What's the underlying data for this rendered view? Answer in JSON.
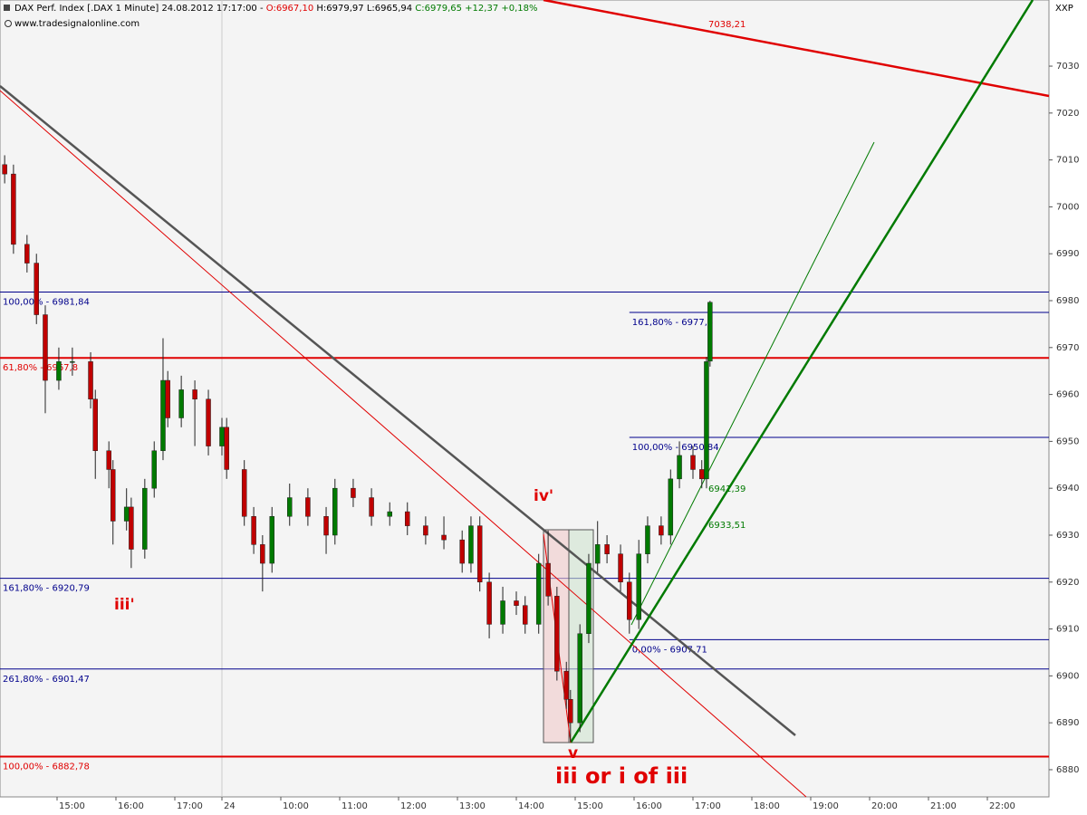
{
  "header": {
    "title": "DAX Perf. Index [.DAX 1 Minute] 24.08.2012 17:17:00 -",
    "open": "O:6967,10",
    "high": "H:6979,97",
    "low": "L:6965,94",
    "close": "C:6979,65 +12,37 +0,18%",
    "source": "www.tradesignalonline.com",
    "symbol": "XXP"
  },
  "chart_data": {
    "type": "candlestick",
    "x": [
      0.11,
      0.26,
      0.49,
      0.65,
      0.8,
      1.03,
      1.26,
      1.57,
      1.65,
      1.88,
      1.95,
      2.18,
      2.26,
      2.49,
      2.65,
      2.8,
      2.88,
      3.11,
      3.34,
      3.57,
      3.8,
      3.88,
      4.18,
      4.34,
      4.49,
      4.65,
      4.95,
      5.26,
      5.57,
      5.72,
      6.03,
      6.34,
      6.65,
      6.95,
      7.26,
      7.57,
      7.88,
      8.03,
      8.18,
      8.34,
      8.57,
      8.8,
      8.95,
      9.18,
      9.34,
      9.49,
      9.65,
      9.72,
      9.88,
      10.03,
      10.18,
      10.34,
      10.57,
      10.72,
      10.88,
      11.03,
      11.26,
      11.42,
      11.57,
      11.8,
      11.95,
      12.03,
      12.09
    ],
    "open": [
      7009,
      7007,
      6992,
      6988,
      6977,
      6963,
      6967,
      6967,
      6959,
      6948,
      6944,
      6933,
      6936,
      6927,
      6940,
      6948,
      6963,
      6955,
      6961,
      6959,
      6949,
      6953,
      6944,
      6934,
      6928,
      6924,
      6934,
      6938,
      6934,
      6930,
      6940,
      6938,
      6934,
      6935,
      6932,
      6930,
      6929,
      6924,
      6932,
      6920,
      6911,
      6916,
      6915,
      6911,
      6924,
      6917,
      6901,
      6895,
      6890,
      6909,
      6924,
      6928,
      6926,
      6920,
      6912,
      6926,
      6932,
      6930,
      6942,
      6947,
      6944,
      6942,
      6967.1
    ],
    "high": [
      7011,
      7009,
      6994,
      6990,
      6979,
      6970,
      6970,
      6969,
      6961,
      6950,
      6946,
      6940,
      6938,
      6942,
      6950,
      6972,
      6965,
      6964,
      6963,
      6961,
      6955,
      6955,
      6946,
      6936,
      6930,
      6936,
      6941,
      6940,
      6936,
      6942,
      6942,
      6940,
      6937,
      6937,
      6934,
      6934,
      6931,
      6934,
      6934,
      6922,
      6919,
      6918,
      6917,
      6926,
      6931,
      6919,
      6903,
      6897,
      6911,
      6926,
      6933,
      6930,
      6928,
      6922,
      6929,
      6934,
      6934,
      6944,
      6950,
      6949,
      6946,
      6968,
      6979.97
    ],
    "low": [
      7005,
      6990,
      6986,
      6975,
      6956,
      6961,
      6964,
      6957,
      6942,
      6940,
      6928,
      6931,
      6923,
      6925,
      6938,
      6946,
      6953,
      6953,
      6949,
      6947,
      6947,
      6942,
      6932,
      6926,
      6918,
      6922,
      6932,
      6932,
      6926,
      6928,
      6936,
      6932,
      6932,
      6930,
      6928,
      6927,
      6922,
      6922,
      6918,
      6908,
      6909,
      6913,
      6909,
      6909,
      6915,
      6899,
      6893,
      6886,
      6888,
      6907,
      6922,
      6924,
      6918,
      6909,
      6910,
      6924,
      6928,
      6928,
      6940,
      6942,
      6940,
      6940,
      6965.94
    ],
    "close": [
      7007,
      6992,
      6988,
      6977,
      6963,
      6967,
      6967,
      6959,
      6948,
      6944,
      6933,
      6936,
      6927,
      6940,
      6948,
      6963,
      6955,
      6961,
      6959,
      6949,
      6953,
      6944,
      6934,
      6928,
      6924,
      6934,
      6938,
      6934,
      6930,
      6940,
      6938,
      6934,
      6935,
      6932,
      6930,
      6929,
      6924,
      6932,
      6920,
      6911,
      6916,
      6915,
      6911,
      6924,
      6917,
      6901,
      6895,
      6890,
      6909,
      6924,
      6928,
      6926,
      6920,
      6912,
      6926,
      6932,
      6930,
      6942,
      6947,
      6944,
      6942,
      6967,
      6979.65
    ],
    "up_color": "#007a00",
    "down_color": "#c00000",
    "xlim": [
      0.031,
      17.846
    ],
    "xticks": [
      {
        "value": 1,
        "label": "15:00"
      },
      {
        "value": 2,
        "label": "16:00"
      },
      {
        "value": 3,
        "label": "17:00"
      },
      {
        "value": 3.8,
        "label": "24"
      },
      {
        "value": 4.8,
        "label": "10:00"
      },
      {
        "value": 5.8,
        "label": "11:00"
      },
      {
        "value": 6.8,
        "label": "12:00"
      },
      {
        "value": 7.8,
        "label": "13:00"
      },
      {
        "value": 8.8,
        "label": "14:00"
      },
      {
        "value": 9.8,
        "label": "15:00"
      },
      {
        "value": 10.8,
        "label": "16:00"
      },
      {
        "value": 11.8,
        "label": "17:00"
      },
      {
        "value": 12.8,
        "label": "18:00"
      },
      {
        "value": 13.8,
        "label": "19:00"
      },
      {
        "value": 14.8,
        "label": "20:00"
      },
      {
        "value": 15.8,
        "label": "21:00"
      },
      {
        "value": 16.8,
        "label": "22:00"
      }
    ],
    "ylim": [
      6874.2,
      7044.1
    ],
    "yticks": [
      6880,
      6890,
      6900,
      6910,
      6920,
      6930,
      6940,
      6950,
      6960,
      6970,
      6980,
      6990,
      7000,
      7010,
      7020,
      7030
    ],
    "grid": false,
    "levels": [
      {
        "value": 6981.84,
        "label": "100,00% - 6981,84",
        "color": "#00008b",
        "from": 0.031
      },
      {
        "value": 6967.8,
        "label": "61,80% - 6967,8",
        "color": "#e00000",
        "from": 0.031
      },
      {
        "value": 6920.79,
        "label": "161,80% - 6920,79",
        "color": "#00008b",
        "from": 0.031
      },
      {
        "value": 6901.47,
        "label": "261,80% - 6901,47",
        "color": "#00008b",
        "from": 0.031
      },
      {
        "value": 6882.78,
        "label": "100,00% - 6882,78",
        "color": "#e00000",
        "from": 0.031
      },
      {
        "value": 6977.5,
        "label": "161,80% - 6977,5",
        "color": "#00008b",
        "from": 10.72
      },
      {
        "value": 6950.84,
        "label": "100,00% - 6950,84",
        "color": "#00008b",
        "from": 10.72
      },
      {
        "value": 6907.71,
        "label": "0,00% - 6907,71",
        "color": "#00008b",
        "from": 10.72
      }
    ],
    "annotations": [
      "iii'",
      "iv'",
      "v",
      "iii or i of iii",
      "6941,39",
      "6933,51",
      "7038,21"
    ]
  }
}
